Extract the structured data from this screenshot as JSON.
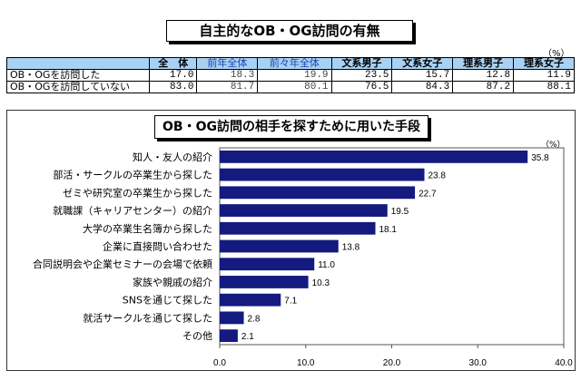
{
  "table": {
    "title": "自主的なOB・OG訪問の有無",
    "unit": "（%）",
    "headers": [
      "全　体",
      "前年全体",
      "前々年全体",
      "文系男子",
      "文系女子",
      "理系男子",
      "理系女子"
    ],
    "rows": [
      {
        "label": "OB・OGを訪問した",
        "values": [
          "17.0",
          "18.3",
          "19.9",
          "23.5",
          "15.7",
          "12.8",
          "11.9"
        ]
      },
      {
        "label": "OB・OGを訪問していない",
        "values": [
          "83.0",
          "81.7",
          "80.1",
          "76.5",
          "84.3",
          "87.2",
          "88.1"
        ]
      }
    ]
  },
  "chart_data": {
    "type": "bar",
    "orientation": "horizontal",
    "title": "OB・OG訪問の相手を探すために用いた手段",
    "unit": "（%）",
    "categories": [
      "知人・友人の紹介",
      "部活・サークルの卒業生から探した",
      "ゼミや研究室の卒業生から探した",
      "就職課（キャリアセンター）の紹介",
      "大学の卒業生名簿から探した",
      "企業に直接問い合わせた",
      "合同説明会や企業セミナーの会場で依頼",
      "家族や親戚の紹介",
      "SNSを通じて探した",
      "就活サークルを通じて探した",
      "その他"
    ],
    "values": [
      35.8,
      23.8,
      22.7,
      19.5,
      18.1,
      13.8,
      11.0,
      10.3,
      7.1,
      2.8,
      2.1
    ],
    "xlim": [
      0,
      40
    ],
    "xticks": [
      "0.0",
      "10.0",
      "20.0",
      "30.0",
      "40.0"
    ],
    "bar_color": "#141a80"
  }
}
